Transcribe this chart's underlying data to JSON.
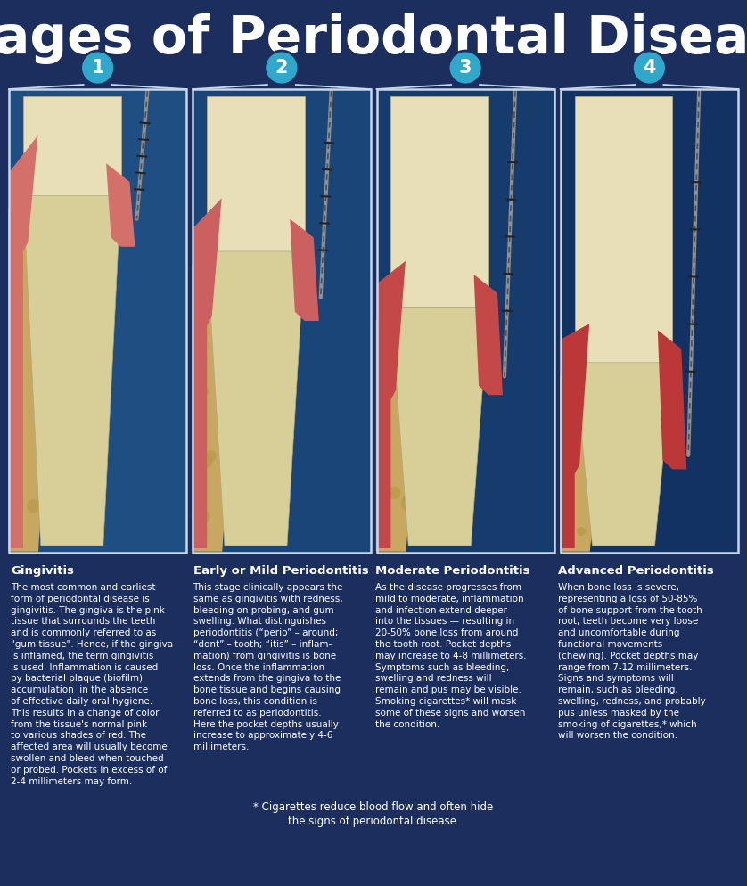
{
  "title": "Stages of Periodontal Disease",
  "bg_color": "#1b2e5e",
  "title_color": "#ffffff",
  "title_fontsize": 42,
  "panel_border_color": "#c8d8e8",
  "number_bg_color": "#2fa8cc",
  "number_text_color": "#ffffff",
  "stage_numbers": [
    "1",
    "2",
    "3",
    "4"
  ],
  "stage_titles": [
    "Gingivitis",
    "Early or Mild Periodontitis",
    "Moderate Periodontitis",
    "Advanced Periodontitis"
  ],
  "stage_body": [
    "The most common and earliest\nform of periodontal disease is\ngingivitis. The gingiva is the pink\ntissue that surrounds the teeth\nand is commonly referred to as\n\"gum tissue\". Hence, if the gingiva\nis inflamed, the term gingivitis\nis used. Inflammation is caused\nby bacterial plaque (biofilm)\naccumulation  in the absence\nof effective daily oral hygiene.\nThis results in a change of color\nfrom the tissue's normal pink\nto various shades of red. The\naffected area will usually become\nswollen and bleed when touched\nor probed. Pockets in excess of of\n2-4 millimeters may form.",
    "This stage clinically appears the\nsame as gingivitis with redness,\nbleeding on probing, and gum\nswelling. What distinguishes\nperiodontitis (“perio” – around;\n“dont” – tooth; “itis” – inflam-\nmation) from gingivitis is bone\nloss. Once the inflammation\nextends from the gingiva to the\nbone tissue and begins causing\nbone loss, this condition is\nreferred to as periodontitis.\nHere the pocket depths usually\nincrease to approximately 4-6\nmillimeters.",
    "As the disease progresses from\nmild to moderate, inflammation\nand infection extend deeper\ninto the tissues — resulting in\n20-50% bone loss from around\nthe tooth root. Pocket depths\nmay increase to 4-8 millimeters.\nSymptoms such as bleeding,\nswelling and redness will\nremain and pus may be visible.\nSmoking cigarettes* will mask\nsome of these signs and worsen\nthe condition.",
    "When bone loss is severe,\nrepresenting a loss of 50-85%\nof bone support from the tooth\nroot, teeth become very loose\nand uncomfortable during\nfunctional movements\n(chewing). Pocket depths may\nrange from 7-12 millimeters.\nSigns and symptoms will\nremain, such as bleeding,\nswelling, redness, and probably\npus unless masked by the\nsmoking of cigarettes,* which\nwill worsen the condition."
  ],
  "footnote_line1": "* Cigarettes reduce blood flow and often hide",
  "footnote_line2": "the signs of periodontal disease.",
  "text_color": "#ffffff",
  "panel_bg_colors": [
    "#1e4e82",
    "#1a4578",
    "#163c6e",
    "#123264"
  ],
  "gum_colors": [
    "#d4706a",
    "#cc6060",
    "#c44848",
    "#bc3838"
  ],
  "tooth_color": "#e8deb8",
  "root_color": "#d8ce98",
  "bone_color": "#c8a860",
  "bone_spongy_color": "#b89848"
}
